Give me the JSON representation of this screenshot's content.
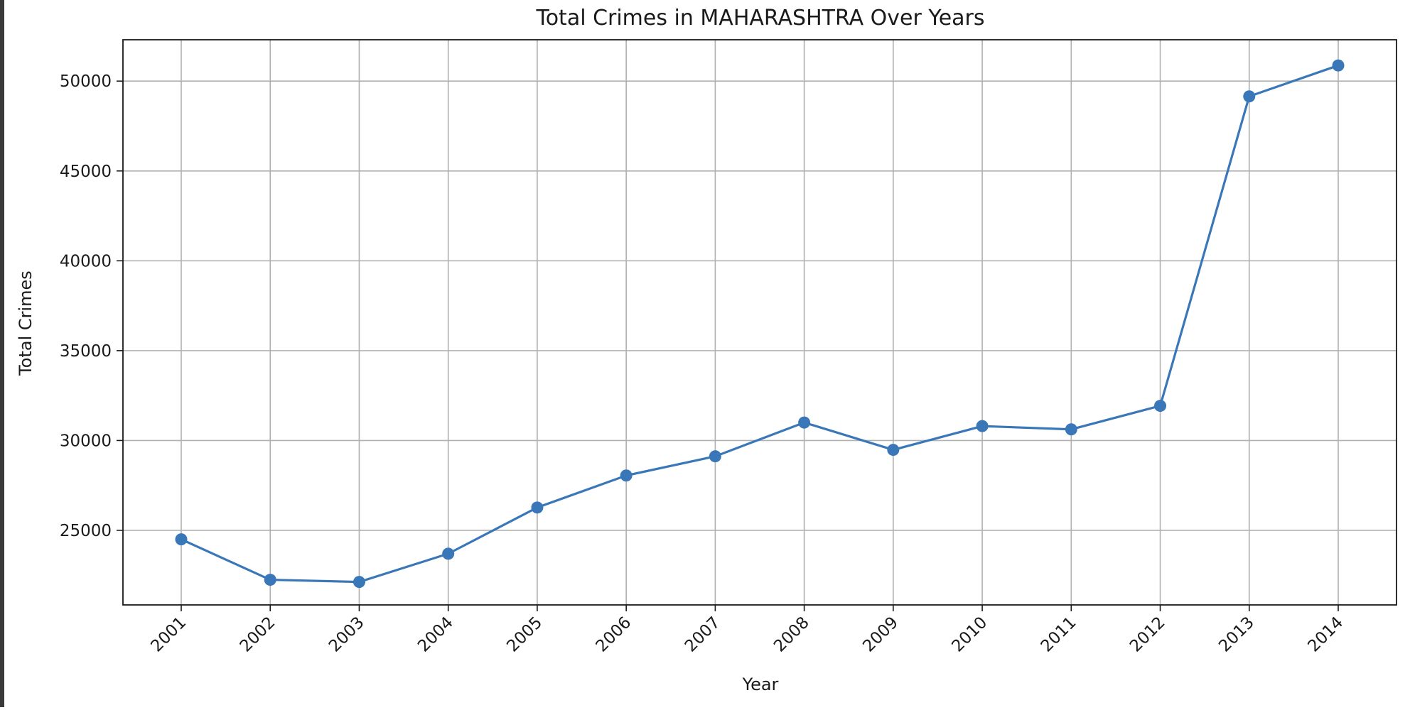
{
  "chart_data": {
    "type": "line",
    "title": "Total Crimes in MAHARASHTRA Over Years",
    "xlabel": "Year",
    "ylabel": "Total Crimes",
    "x": [
      2001,
      2002,
      2003,
      2004,
      2005,
      2006,
      2007,
      2008,
      2009,
      2010,
      2011,
      2012,
      2013,
      2014
    ],
    "x_tick_labels": [
      "2001",
      "2002",
      "2003",
      "2004",
      "2005",
      "2006",
      "2007",
      "2008",
      "2009",
      "2010",
      "2011",
      "2012",
      "2013",
      "2014"
    ],
    "series": [
      {
        "values": [
          24500,
          22250,
          22130,
          23700,
          26270,
          28050,
          29120,
          31000,
          29480,
          30800,
          30620,
          31930,
          49150,
          50870
        ],
        "color": "#3a77b8",
        "marker": "circle"
      }
    ],
    "ylim": [
      20850,
      52300
    ],
    "y_ticks": [
      25000,
      30000,
      35000,
      40000,
      45000,
      50000
    ],
    "y_tick_labels": [
      "25000",
      "30000",
      "35000",
      "40000",
      "45000",
      "50000"
    ],
    "grid": true,
    "legend": "none"
  }
}
